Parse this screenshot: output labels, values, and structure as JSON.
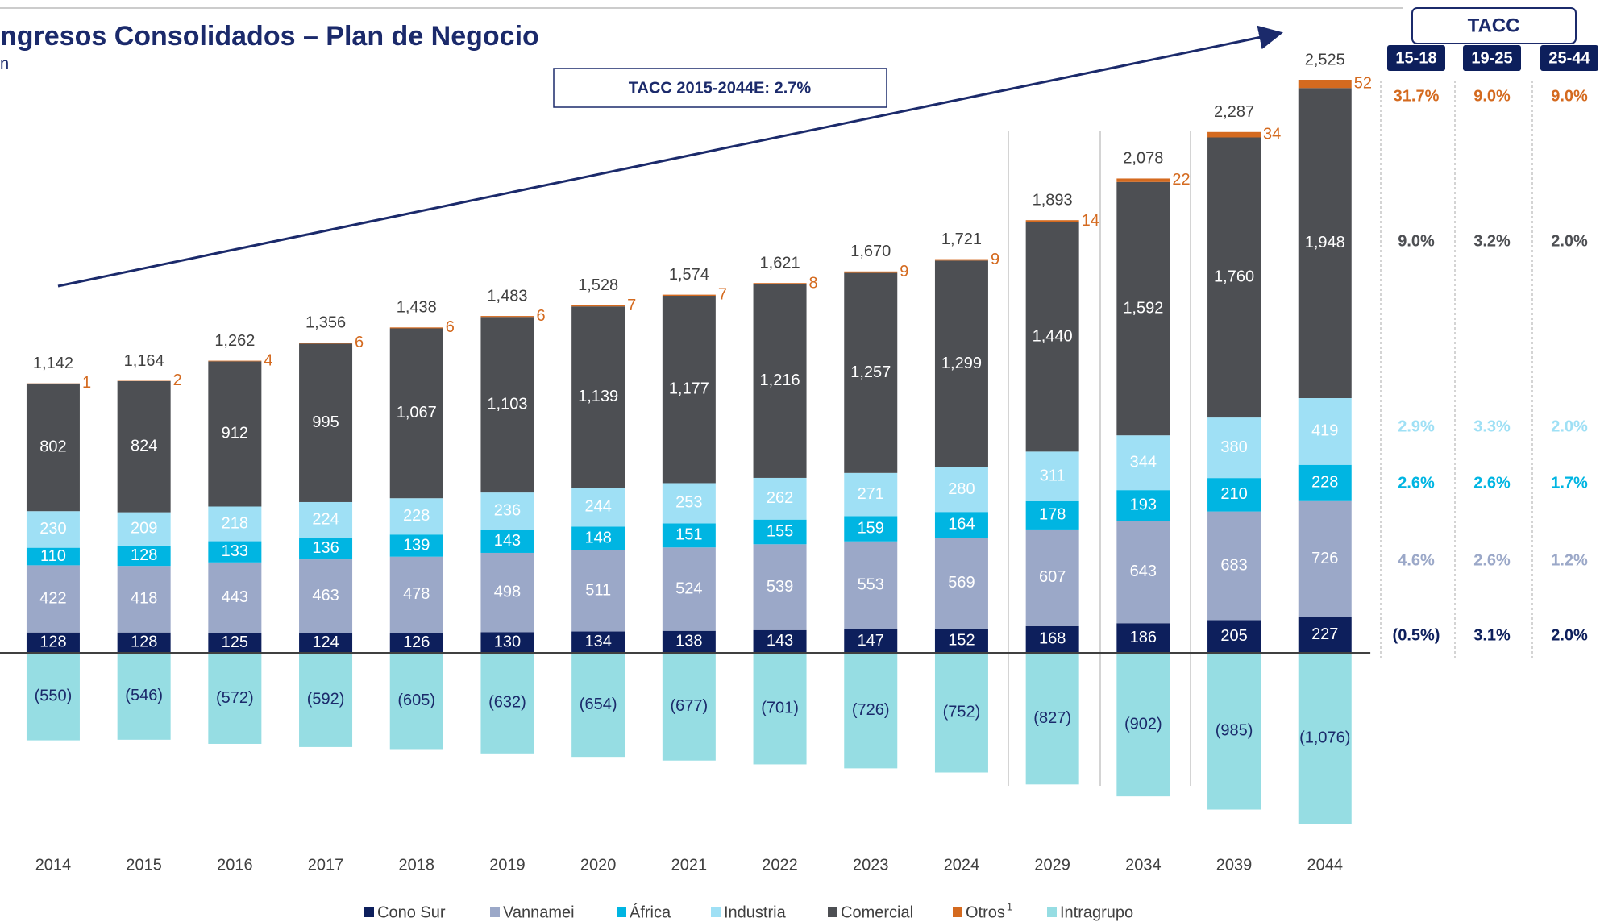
{
  "chart_data": {
    "type": "stacked_bar",
    "title": "ngresos Consolidados – Plan de Negocio",
    "subtitle": "n",
    "annotation": "TACC 2015-2044E: 2.7%",
    "categories": [
      "2014",
      "2015",
      "2016",
      "2017",
      "2018",
      "2019",
      "2020",
      "2021",
      "2022",
      "2023",
      "2024",
      "2029",
      "2034",
      "2039",
      "2044"
    ],
    "ylim": [
      -1200,
      4000
    ],
    "series": [
      {
        "name": "Cono Sur",
        "color": "#0d1f5c",
        "label_color": "#ffffff",
        "values": [
          128,
          128,
          125,
          124,
          126,
          130,
          134,
          138,
          143,
          147,
          152,
          168,
          186,
          205,
          227
        ]
      },
      {
        "name": "Vannamei",
        "color": "#9ba8c8",
        "label_color": "#ffffff",
        "values": [
          422,
          418,
          443,
          463,
          478,
          498,
          511,
          524,
          539,
          553,
          569,
          607,
          643,
          683,
          726
        ]
      },
      {
        "name": "África",
        "color": "#00b5e2",
        "label_color": "#ffffff",
        "values": [
          110,
          128,
          133,
          136,
          139,
          143,
          148,
          151,
          155,
          159,
          164,
          178,
          193,
          210,
          228
        ]
      },
      {
        "name": "Industria",
        "color": "#9fe0f5",
        "label_color": "#ffffff",
        "values": [
          230,
          209,
          218,
          224,
          228,
          236,
          244,
          253,
          262,
          271,
          280,
          311,
          344,
          380,
          419
        ]
      },
      {
        "name": "Comercial",
        "color": "#4d4f53",
        "label_color": "#ffffff",
        "values": [
          802,
          824,
          912,
          995,
          1067,
          1103,
          1139,
          1177,
          1216,
          1257,
          1299,
          1440,
          1592,
          1760,
          1948
        ],
        "value_labels": [
          "802",
          "824",
          "912",
          "995",
          "1,067",
          "1,103",
          "1,139",
          "1,177",
          "1,216",
          "1,257",
          "1,299",
          "1,440",
          "1,592",
          "1,760",
          "1,948"
        ]
      },
      {
        "name": "Otros",
        "footnote_marker": "1",
        "color": "#d46a1f",
        "label_color": "#d46a1f",
        "label_outside": true,
        "values": [
          1,
          2,
          4,
          6,
          6,
          6,
          7,
          7,
          8,
          9,
          9,
          14,
          22,
          34,
          52
        ]
      },
      {
        "name": "Intragrupo",
        "color": "#96dde3",
        "label_color": "#1b2a6b",
        "values": [
          -550,
          -546,
          -572,
          -592,
          -605,
          -632,
          -654,
          -677,
          -701,
          -726,
          -752,
          -827,
          -902,
          -985,
          -1076
        ],
        "value_labels": [
          "(550)",
          "(546)",
          "(572)",
          "(592)",
          "(605)",
          "(632)",
          "(654)",
          "(677)",
          "(701)",
          "(726)",
          "(752)",
          "(827)",
          "(902)",
          "(985)",
          "(1,076)"
        ]
      }
    ],
    "totals": {
      "values": [
        1142,
        1164,
        1262,
        1356,
        1438,
        1483,
        1528,
        1574,
        1621,
        1670,
        1721,
        1893,
        2078,
        2287,
        2525
      ],
      "value_labels": [
        "1,142",
        "1,164",
        "1,262",
        "1,356",
        "1,438",
        "1,483",
        "1,528",
        "1,574",
        "1,621",
        "1,670",
        "1,721",
        "1,893",
        "2,078",
        "2,287",
        "2,525"
      ]
    },
    "table": {
      "header": "TACC",
      "columns": [
        "15-18",
        "19-25",
        "25-44"
      ],
      "rows": [
        {
          "color": "#d46a1f",
          "cells": [
            "31.7%",
            "9.0%",
            "9.0%"
          ]
        },
        {
          "color": "#4d4f53",
          "cells": [
            "9.0%",
            "3.2%",
            "2.0%"
          ]
        },
        {
          "color": "#9fe0f5",
          "cells": [
            "2.9%",
            "3.3%",
            "2.0%"
          ]
        },
        {
          "color": "#00b5e2",
          "cells": [
            "2.6%",
            "2.6%",
            "1.7%"
          ]
        },
        {
          "color": "#9ba8c8",
          "cells": [
            "4.6%",
            "2.6%",
            "1.2%"
          ]
        },
        {
          "color": "#0d1f5c",
          "cells": [
            "(0.5%)",
            "3.1%",
            "2.0%"
          ]
        }
      ]
    }
  }
}
